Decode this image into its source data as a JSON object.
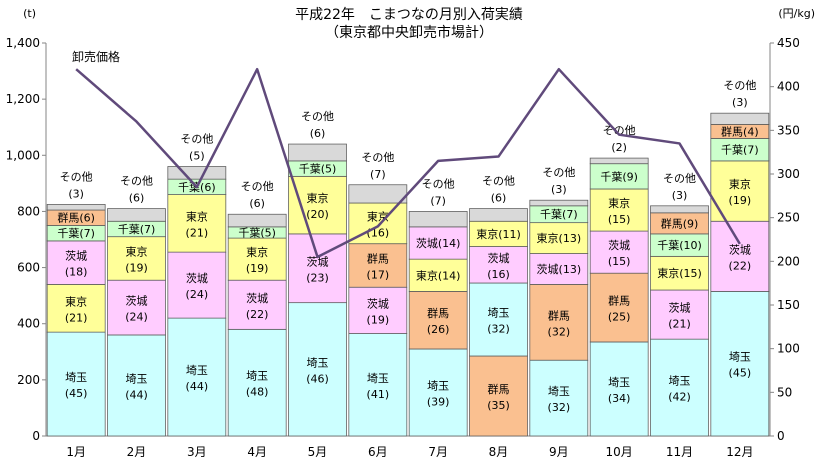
{
  "chart_data": {
    "type": "bar",
    "stacked": true,
    "title": "平成22年　こまつなの月別入荷実績",
    "subtitle": "（東京都中央卸売市場計）",
    "ylabel_left": "(t)",
    "ylabel_right": "(円/kg)",
    "ylim_left": [
      0,
      1400
    ],
    "yticks_left": [
      "0",
      "200",
      "400",
      "600",
      "800",
      "1,000",
      "1,200",
      "1,400"
    ],
    "ylim_right": [
      0,
      450
    ],
    "yticks_right": [
      "0",
      "50",
      "100",
      "150",
      "200",
      "250",
      "300",
      "350",
      "400",
      "450"
    ],
    "categories": [
      "1月",
      "2月",
      "3月",
      "4月",
      "5月",
      "6月",
      "7月",
      "8月",
      "9月",
      "10月",
      "11月",
      "12月"
    ],
    "colors": {
      "埼玉": "#ccffff",
      "東京": "#ffff99",
      "茨城": "#ffccff",
      "千葉": "#ccffcc",
      "群馬": "#fac090",
      "その他": "#d9d9d9",
      "line": "#604a7b"
    },
    "months": [
      {
        "segments": [
          {
            "name": "埼玉",
            "pct": 45,
            "value": 370
          },
          {
            "name": "東京",
            "pct": 21,
            "value": 170
          },
          {
            "name": "茨城",
            "pct": 18,
            "value": 155
          },
          {
            "name": "千葉",
            "pct": 7,
            "value": 55
          },
          {
            "name": "群馬",
            "pct": 6,
            "value": 55
          },
          {
            "name": "その他",
            "pct": 3,
            "value": 20
          }
        ]
      },
      {
        "segments": [
          {
            "name": "埼玉",
            "pct": 44,
            "value": 360
          },
          {
            "name": "茨城",
            "pct": 24,
            "value": 195
          },
          {
            "name": "東京",
            "pct": 19,
            "value": 155
          },
          {
            "name": "千葉",
            "pct": 7,
            "value": 55
          },
          {
            "name": "その他",
            "pct": 6,
            "value": 45
          }
        ]
      },
      {
        "segments": [
          {
            "name": "埼玉",
            "pct": 44,
            "value": 420
          },
          {
            "name": "茨城",
            "pct": 24,
            "value": 235
          },
          {
            "name": "東京",
            "pct": 21,
            "value": 205
          },
          {
            "name": "千葉",
            "pct": 6,
            "value": 55
          },
          {
            "name": "その他",
            "pct": 5,
            "value": 45
          }
        ]
      },
      {
        "segments": [
          {
            "name": "埼玉",
            "pct": 48,
            "value": 380
          },
          {
            "name": "茨城",
            "pct": 22,
            "value": 175
          },
          {
            "name": "東京",
            "pct": 19,
            "value": 150
          },
          {
            "name": "千葉",
            "pct": 5,
            "value": 40
          },
          {
            "name": "その他",
            "pct": 6,
            "value": 45
          }
        ]
      },
      {
        "segments": [
          {
            "name": "埼玉",
            "pct": 46,
            "value": 475
          },
          {
            "name": "茨城",
            "pct": 23,
            "value": 245
          },
          {
            "name": "東京",
            "pct": 20,
            "value": 205
          },
          {
            "name": "千葉",
            "pct": 5,
            "value": 55
          },
          {
            "name": "その他",
            "pct": 6,
            "value": 60
          }
        ]
      },
      {
        "segments": [
          {
            "name": "埼玉",
            "pct": 41,
            "value": 365
          },
          {
            "name": "茨城",
            "pct": 19,
            "value": 165
          },
          {
            "name": "群馬",
            "pct": 17,
            "value": 155
          },
          {
            "name": "東京",
            "pct": 16,
            "value": 145
          },
          {
            "name": "その他",
            "pct": 7,
            "value": 65
          }
        ]
      },
      {
        "segments": [
          {
            "name": "埼玉",
            "pct": 39,
            "value": 310
          },
          {
            "name": "群馬",
            "pct": 26,
            "value": 205
          },
          {
            "name": "東京",
            "pct": 14,
            "value": 115
          },
          {
            "name": "茨城",
            "pct": 14,
            "value": 115
          },
          {
            "name": "その他",
            "pct": 7,
            "value": 55
          }
        ]
      },
      {
        "segments": [
          {
            "name": "群馬",
            "pct": 35,
            "value": 285
          },
          {
            "name": "埼玉",
            "pct": 32,
            "value": 260
          },
          {
            "name": "茨城",
            "pct": 16,
            "value": 130
          },
          {
            "name": "東京",
            "pct": 11,
            "value": 90
          },
          {
            "name": "その他",
            "pct": 6,
            "value": 45
          }
        ]
      },
      {
        "segments": [
          {
            "name": "埼玉",
            "pct": 32,
            "value": 270
          },
          {
            "name": "群馬",
            "pct": 32,
            "value": 270
          },
          {
            "name": "茨城",
            "pct": 13,
            "value": 110
          },
          {
            "name": "東京",
            "pct": 13,
            "value": 110
          },
          {
            "name": "千葉",
            "pct": 7,
            "value": 60
          },
          {
            "name": "その他",
            "pct": 3,
            "value": 20
          }
        ]
      },
      {
        "segments": [
          {
            "name": "埼玉",
            "pct": 34,
            "value": 335
          },
          {
            "name": "群馬",
            "pct": 25,
            "value": 245
          },
          {
            "name": "茨城",
            "pct": 15,
            "value": 150
          },
          {
            "name": "東京",
            "pct": 15,
            "value": 150
          },
          {
            "name": "千葉",
            "pct": 9,
            "value": 90
          },
          {
            "name": "その他",
            "pct": 2,
            "value": 20
          }
        ]
      },
      {
        "segments": [
          {
            "name": "埼玉",
            "pct": 42,
            "value": 345
          },
          {
            "name": "茨城",
            "pct": 21,
            "value": 175
          },
          {
            "name": "東京",
            "pct": 15,
            "value": 120
          },
          {
            "name": "千葉",
            "pct": 10,
            "value": 80
          },
          {
            "name": "群馬",
            "pct": 9,
            "value": 75
          },
          {
            "name": "その他",
            "pct": 3,
            "value": 25
          }
        ]
      },
      {
        "segments": [
          {
            "name": "埼玉",
            "pct": 45,
            "value": 515
          },
          {
            "name": "茨城",
            "pct": 22,
            "value": 250
          },
          {
            "name": "東京",
            "pct": 19,
            "value": 215
          },
          {
            "name": "千葉",
            "pct": 7,
            "value": 80
          },
          {
            "name": "群馬",
            "pct": 4,
            "value": 50
          },
          {
            "name": "その他",
            "pct": 3,
            "value": 40
          }
        ]
      }
    ],
    "line": {
      "name": "卸売価格",
      "values": [
        420,
        360,
        285,
        420,
        205,
        240,
        315,
        320,
        420,
        345,
        335,
        220
      ]
    }
  }
}
